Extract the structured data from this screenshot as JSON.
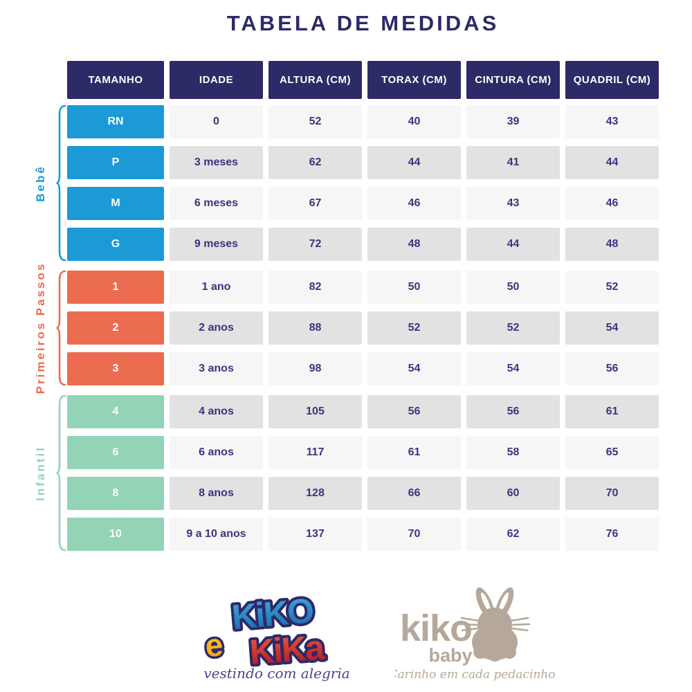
{
  "title": "TABELA DE MEDIDAS",
  "table": {
    "headers": [
      "TAMANHO",
      "IDADE",
      "ALTURA (CM)",
      "TORAX (CM)",
      "CINTURA (CM)",
      "QUADRIL (CM)"
    ],
    "header_bg": "#2d2a68",
    "cell_text_color": "#3a3480",
    "stripe_colors": [
      "#f6f6f6",
      "#e2e2e2"
    ],
    "groups": [
      {
        "label": "Bebê",
        "color": "#1b9ad6",
        "rows": [
          {
            "cells": [
              "RN",
              "0",
              "52",
              "40",
              "39",
              "43"
            ]
          },
          {
            "cells": [
              "P",
              "3 meses",
              "62",
              "44",
              "41",
              "44"
            ]
          },
          {
            "cells": [
              "M",
              "6 meses",
              "67",
              "46",
              "43",
              "46"
            ]
          },
          {
            "cells": [
              "G",
              "9 meses",
              "72",
              "48",
              "44",
              "48"
            ]
          }
        ]
      },
      {
        "label": "Primeiros Passos",
        "color": "#ec6c52",
        "rows": [
          {
            "cells": [
              "1",
              "1 ano",
              "82",
              "50",
              "50",
              "52"
            ]
          },
          {
            "cells": [
              "2",
              "2 anos",
              "88",
              "52",
              "52",
              "54"
            ]
          },
          {
            "cells": [
              "3",
              "3 anos",
              "98",
              "54",
              "54",
              "56"
            ]
          }
        ]
      },
      {
        "label": "Infantil",
        "color": "#92d4b5",
        "rows": [
          {
            "cells": [
              "4",
              "4 anos",
              "105",
              "56",
              "56",
              "61"
            ]
          },
          {
            "cells": [
              "6",
              "6 anos",
              "117",
              "61",
              "58",
              "65"
            ]
          },
          {
            "cells": [
              "8",
              "8 anos",
              "128",
              "66",
              "60",
              "70"
            ]
          },
          {
            "cells": [
              "10",
              "9 a 10 anos",
              "137",
              "70",
              "62",
              "76"
            ]
          }
        ]
      }
    ]
  },
  "footer": {
    "kiko_e_kika": {
      "word1": "KiKO",
      "conj": "e",
      "word2": "KiKa",
      "tagline": "vestindo com alegria",
      "blue_top": "#45aade",
      "blue_bottom": "#1668ad",
      "red_top": "#f0603c",
      "red_bottom": "#b01020",
      "yellow_top": "#fdd023",
      "yellow_bottom": "#f59a1a",
      "outline": "#2d2a68",
      "tagline_color": "#4a4390"
    },
    "kiko_baby": {
      "name": "kiko",
      "sub": "baby",
      "tagline": "Carinho em cada pedacinho",
      "color": "#b5a89a"
    }
  }
}
